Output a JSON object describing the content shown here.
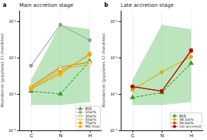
{
  "chart_data": [
    {
      "type": "line",
      "title": "Main accretion stage",
      "annotations": [
        "a"
      ],
      "y_label": "Abundances (g/g-planet, CI chondrites)",
      "categories": [
        "C",
        "N",
        "H"
      ],
      "log": "y",
      "ylim": [
        0.0001,
        0.2
      ],
      "yticks": [
        {
          "value": 0.0001,
          "label": "10⁻⁴"
        },
        {
          "value": 0.001,
          "label": "10⁻³"
        },
        {
          "value": 0.01,
          "label": "10⁻²"
        },
        {
          "value": 0.1,
          "label": "10⁻¹"
        }
      ],
      "grid": "x",
      "legend": "lower right",
      "series": [
        {
          "type": "area",
          "color": "#5bbf5b",
          "values": [
            0.0025,
            0.08,
            0.06
          ],
          "lower": [
            0.0005,
            0.0005,
            0.0006
          ]
        },
        {
          "name": "BSE",
          "color": "#2ca02c",
          "marker": "triangle",
          "line_style": "dashed",
          "values": [
            0.0012,
            0.001,
            0.008
          ]
        },
        {
          "name": "10at%",
          "color": "#999999",
          "marker": "circle",
          "line_style": "solid",
          "values": [
            0.006,
            0.08,
            0.03
          ]
        },
        {
          "name": "30at%",
          "color": "#cc8800",
          "marker": "open-circle",
          "line_style": "solid",
          "values": [
            0.0016,
            0.0055,
            0.0075
          ]
        },
        {
          "name": "50at%",
          "color": "#ddaa44",
          "marker": "open-circle",
          "line_style": "solid",
          "values": [
            0.0015,
            0.0048,
            0.0065
          ]
        },
        {
          "name": "70at%",
          "color": "#ee9900",
          "marker": "circle",
          "line_style": "solid",
          "values": [
            0.0014,
            0.004,
            0.012
          ]
        },
        {
          "name": "MO final",
          "color": "#ffaa00",
          "marker": "square",
          "line_style": "solid",
          "values": [
            0.00135,
            0.0035,
            0.013
          ]
        }
      ]
    },
    {
      "type": "line",
      "title": "Late accretion stage",
      "annotations": [
        "b"
      ],
      "y_label": "Abundances (g/g-planet, CI chondrites)",
      "categories": [
        "C",
        "N",
        "H"
      ],
      "log": "y",
      "ylim": [
        0.0001,
        0.2
      ],
      "yticks": [
        {
          "value": 0.0001,
          "label": "10⁻⁴"
        },
        {
          "value": 0.001,
          "label": "10⁻³"
        },
        {
          "value": 0.01,
          "label": "10⁻²"
        },
        {
          "value": 0.1,
          "label": "10⁻¹"
        }
      ],
      "grid": "x",
      "legend": "lower right",
      "series": [
        {
          "type": "area",
          "color": "#5bbf5b",
          "values": [
            0.0025,
            0.08,
            0.06
          ],
          "lower": [
            0.0005,
            0.0005,
            0.0006
          ]
        },
        {
          "name": "BSE",
          "color": "#2ca02c",
          "marker": "triangle",
          "line_style": "dashed",
          "values": [
            0.0008,
            0.0011,
            0.007
          ]
        },
        {
          "name": "99.5at%",
          "color": "#ddaa00",
          "marker": "circle",
          "line_style": "solid",
          "values": [
            0.0013,
            0.004,
            0.0105
          ]
        },
        {
          "name": "99.8at%",
          "color": "#cc4422",
          "marker": "circle",
          "line_style": "solid",
          "values": [
            0.0016,
            0.0012,
            0.015
          ]
        },
        {
          "name": "full accreted",
          "color": "#bb0000",
          "marker": "square",
          "line_style": "solid",
          "values": [
            0.0016,
            0.0012,
            0.016
          ]
        }
      ]
    }
  ]
}
